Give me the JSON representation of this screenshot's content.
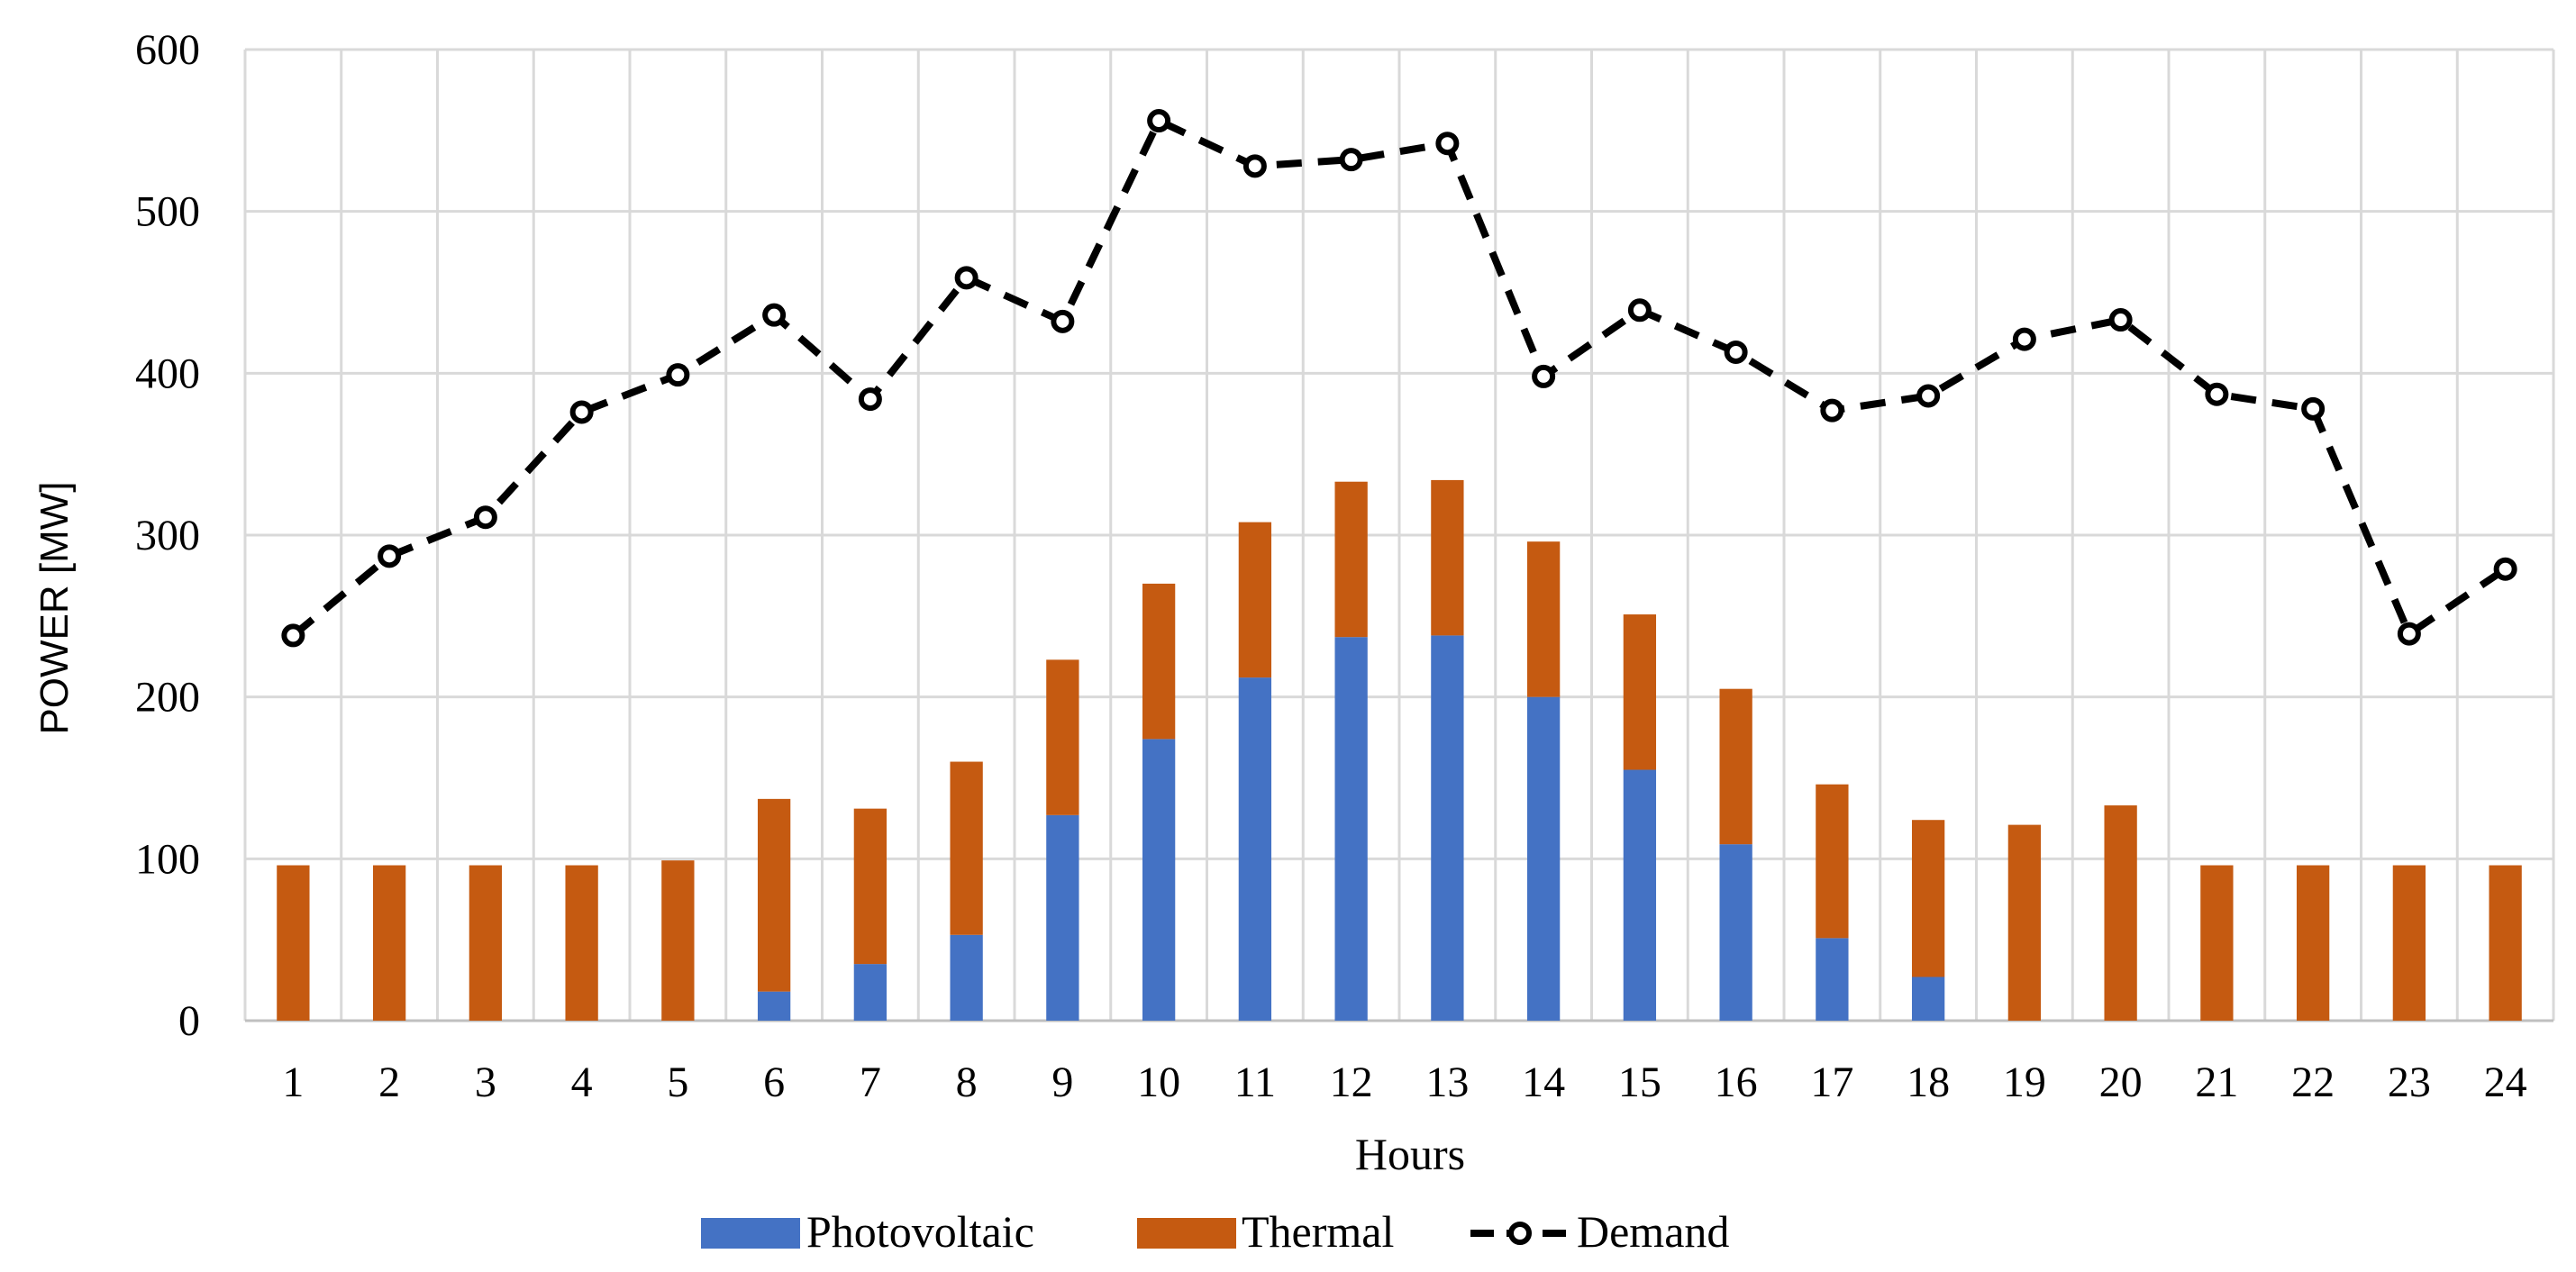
{
  "chart_data": {
    "type": "bar",
    "stacked": true,
    "title": "",
    "xlabel": "Hours",
    "ylabel": "POWER [MW]",
    "ylim": [
      0,
      600
    ],
    "yticks": [
      0,
      100,
      200,
      300,
      400,
      500,
      600
    ],
    "grid": true,
    "categories": [
      "1",
      "2",
      "3",
      "4",
      "5",
      "6",
      "7",
      "8",
      "9",
      "10",
      "11",
      "12",
      "13",
      "14",
      "15",
      "16",
      "17",
      "18",
      "19",
      "20",
      "21",
      "22",
      "23",
      "24"
    ],
    "series": [
      {
        "name": "Photovoltaic",
        "type": "bar",
        "color": "#4472c4",
        "values": [
          0,
          0,
          0,
          0,
          0,
          18,
          35,
          53,
          127,
          174,
          212,
          237,
          238,
          200,
          155,
          109,
          51,
          27,
          0,
          0,
          0,
          0,
          0,
          0
        ]
      },
      {
        "name": "Thermal",
        "type": "bar",
        "color": "#c55a11",
        "values": [
          96,
          96,
          96,
          96,
          99,
          119,
          96,
          107,
          96,
          96,
          96,
          96,
          96,
          96,
          96,
          96,
          95,
          97,
          121,
          133,
          96,
          96,
          96,
          96
        ]
      },
      {
        "name": "Demand",
        "type": "line",
        "color": "#000000",
        "values": [
          238,
          287,
          311,
          376,
          399,
          436,
          384,
          459,
          432,
          556,
          528,
          532,
          542,
          398,
          439,
          413,
          377,
          386,
          421,
          433,
          387,
          378,
          239,
          279
        ]
      }
    ],
    "legend_position": "bottom-center"
  }
}
